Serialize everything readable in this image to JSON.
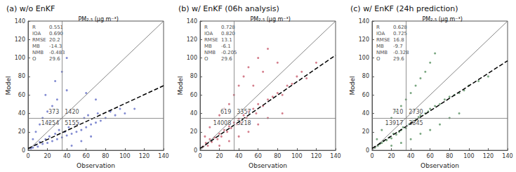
{
  "chart_data": [
    {
      "type": "scatter",
      "title": "(a) w/o EnKF",
      "subtitle": "PM₂.₅ (μg m⁻³)",
      "x_label": "Observation",
      "y_label": "Model",
      "color": "#2f3db4",
      "marker": "circle",
      "grid": false,
      "xlim": [
        0,
        140
      ],
      "ylim": [
        0,
        140
      ],
      "xticks": [
        0,
        20,
        40,
        60,
        80,
        100,
        120,
        140
      ],
      "yticks": [
        0,
        20,
        40,
        60,
        80,
        100,
        120,
        140
      ],
      "stats": [
        [
          "R",
          "0.551"
        ],
        [
          "IOA",
          "0.690"
        ],
        [
          "RMSE",
          "20.2"
        ],
        [
          "MB",
          "-14.3"
        ],
        [
          "NMB",
          "-0.483"
        ],
        [
          "O",
          "29.6"
        ]
      ],
      "threshold": 35,
      "quadrant_counts": {
        "upper_left": 373,
        "upper_right": 1420,
        "lower_left": 14254,
        "lower_right": 5155
      },
      "one_to_one": {
        "x": [
          0,
          140
        ],
        "y": [
          0,
          140
        ]
      },
      "fit_line": {
        "x": [
          0,
          140
        ],
        "y": [
          2,
          70
        ]
      },
      "x": [
        5,
        8,
        10,
        12,
        15,
        18,
        20,
        22,
        25,
        28,
        30,
        32,
        35,
        38,
        40,
        42,
        45,
        48,
        50,
        52,
        55,
        58,
        60,
        62,
        65,
        70,
        72,
        75,
        80,
        85,
        90,
        95,
        100,
        8,
        12,
        15,
        20,
        25,
        30,
        18,
        28,
        35,
        40,
        60,
        70,
        110,
        5,
        3,
        45,
        55,
        65,
        40,
        30,
        22
      ],
      "values": [
        3,
        6,
        4,
        9,
        7,
        12,
        8,
        15,
        10,
        18,
        12,
        22,
        14,
        20,
        16,
        25,
        18,
        28,
        20,
        30,
        22,
        35,
        25,
        38,
        28,
        30,
        40,
        32,
        35,
        42,
        38,
        45,
        40,
        20,
        28,
        35,
        42,
        48,
        55,
        60,
        75,
        85,
        100,
        62,
        55,
        45,
        12,
        2,
        5,
        10,
        15,
        65,
        40,
        30
      ]
    },
    {
      "type": "scatter",
      "title": "(b) w/ EnKF (06h analysis)",
      "subtitle": "PM₂.₅ (μg m⁻³)",
      "x_label": "Observation",
      "y_label": "Model",
      "color": "#b8283f",
      "marker": "circle",
      "grid": false,
      "xlim": [
        0,
        140
      ],
      "ylim": [
        0,
        140
      ],
      "xticks": [
        0,
        20,
        40,
        60,
        80,
        100,
        120,
        140
      ],
      "yticks": [
        0,
        20,
        40,
        60,
        80,
        100,
        120,
        140
      ],
      "stats": [
        [
          "R",
          "0.728"
        ],
        [
          "IOA",
          "0.820"
        ],
        [
          "RMSE",
          "13.1"
        ],
        [
          "MB",
          "-6.1"
        ],
        [
          "NMB",
          "-0.205"
        ],
        [
          "O",
          "29.6"
        ]
      ],
      "threshold": 35,
      "quadrant_counts": {
        "upper_left": 619,
        "upper_right": 3357,
        "lower_left": 14008,
        "lower_right": 3218
      },
      "one_to_one": {
        "x": [
          0,
          140
        ],
        "y": [
          0,
          140
        ]
      },
      "fit_line": {
        "x": [
          0,
          140
        ],
        "y": [
          2,
          103
        ]
      },
      "x": [
        3,
        6,
        8,
        10,
        12,
        15,
        18,
        20,
        22,
        25,
        28,
        30,
        32,
        35,
        38,
        40,
        42,
        45,
        48,
        50,
        55,
        58,
        60,
        65,
        70,
        75,
        80,
        85,
        90,
        95,
        100,
        105,
        110,
        120,
        10,
        15,
        20,
        25,
        30,
        35,
        40,
        45,
        50,
        60,
        70,
        55,
        65,
        80,
        20,
        30,
        40,
        50,
        60,
        70,
        85,
        5
      ],
      "values": [
        4,
        8,
        5,
        12,
        9,
        14,
        12,
        18,
        15,
        22,
        20,
        26,
        24,
        30,
        28,
        34,
        30,
        38,
        35,
        42,
        45,
        40,
        50,
        48,
        55,
        58,
        62,
        60,
        70,
        72,
        80,
        85,
        78,
        95,
        25,
        32,
        38,
        45,
        50,
        60,
        70,
        80,
        90,
        100,
        110,
        70,
        85,
        95,
        5,
        10,
        15,
        20,
        28,
        35,
        40,
        15
      ]
    },
    {
      "type": "scatter",
      "title": "(c) w/ EnKF (24h prediction)",
      "subtitle": "PM₂.₅ (μg m⁻³)",
      "x_label": "Observation",
      "y_label": "Model",
      "color": "#1f6b2b",
      "marker": "circle",
      "grid": false,
      "xlim": [
        0,
        140
      ],
      "ylim": [
        0,
        140
      ],
      "xticks": [
        0,
        20,
        40,
        60,
        80,
        100,
        120,
        140
      ],
      "yticks": [
        0,
        20,
        40,
        60,
        80,
        100,
        120,
        140
      ],
      "stats": [
        [
          "R",
          "0.628"
        ],
        [
          "IOA",
          "0.725"
        ],
        [
          "RMSE",
          "16.8"
        ],
        [
          "MB",
          "-9.7"
        ],
        [
          "NMB",
          "-0.328"
        ],
        [
          "O",
          "29.6"
        ]
      ],
      "threshold": 35,
      "quadrant_counts": {
        "upper_left": 710,
        "upper_right": 2730,
        "lower_left": 13917,
        "lower_right": 3845
      },
      "one_to_one": {
        "x": [
          0,
          140
        ],
        "y": [
          0,
          140
        ]
      },
      "fit_line": {
        "x": [
          0,
          140
        ],
        "y": [
          2,
          97
        ]
      },
      "x": [
        3,
        6,
        8,
        10,
        12,
        15,
        18,
        20,
        22,
        25,
        28,
        30,
        32,
        35,
        38,
        40,
        42,
        45,
        48,
        50,
        55,
        58,
        60,
        65,
        70,
        75,
        80,
        85,
        90,
        95,
        100,
        110,
        120,
        10,
        15,
        20,
        25,
        30,
        35,
        40,
        45,
        50,
        55,
        60,
        65,
        20,
        30,
        40,
        50,
        60,
        70,
        80,
        90,
        5
      ],
      "values": [
        3,
        5,
        7,
        8,
        10,
        11,
        14,
        13,
        18,
        17,
        20,
        22,
        25,
        24,
        28,
        30,
        32,
        33,
        36,
        38,
        40,
        42,
        45,
        48,
        50,
        55,
        58,
        60,
        62,
        65,
        70,
        75,
        80,
        22,
        28,
        35,
        42,
        48,
        55,
        62,
        70,
        78,
        85,
        95,
        105,
        5,
        8,
        12,
        18,
        22,
        28,
        35,
        40,
        12
      ]
    }
  ]
}
